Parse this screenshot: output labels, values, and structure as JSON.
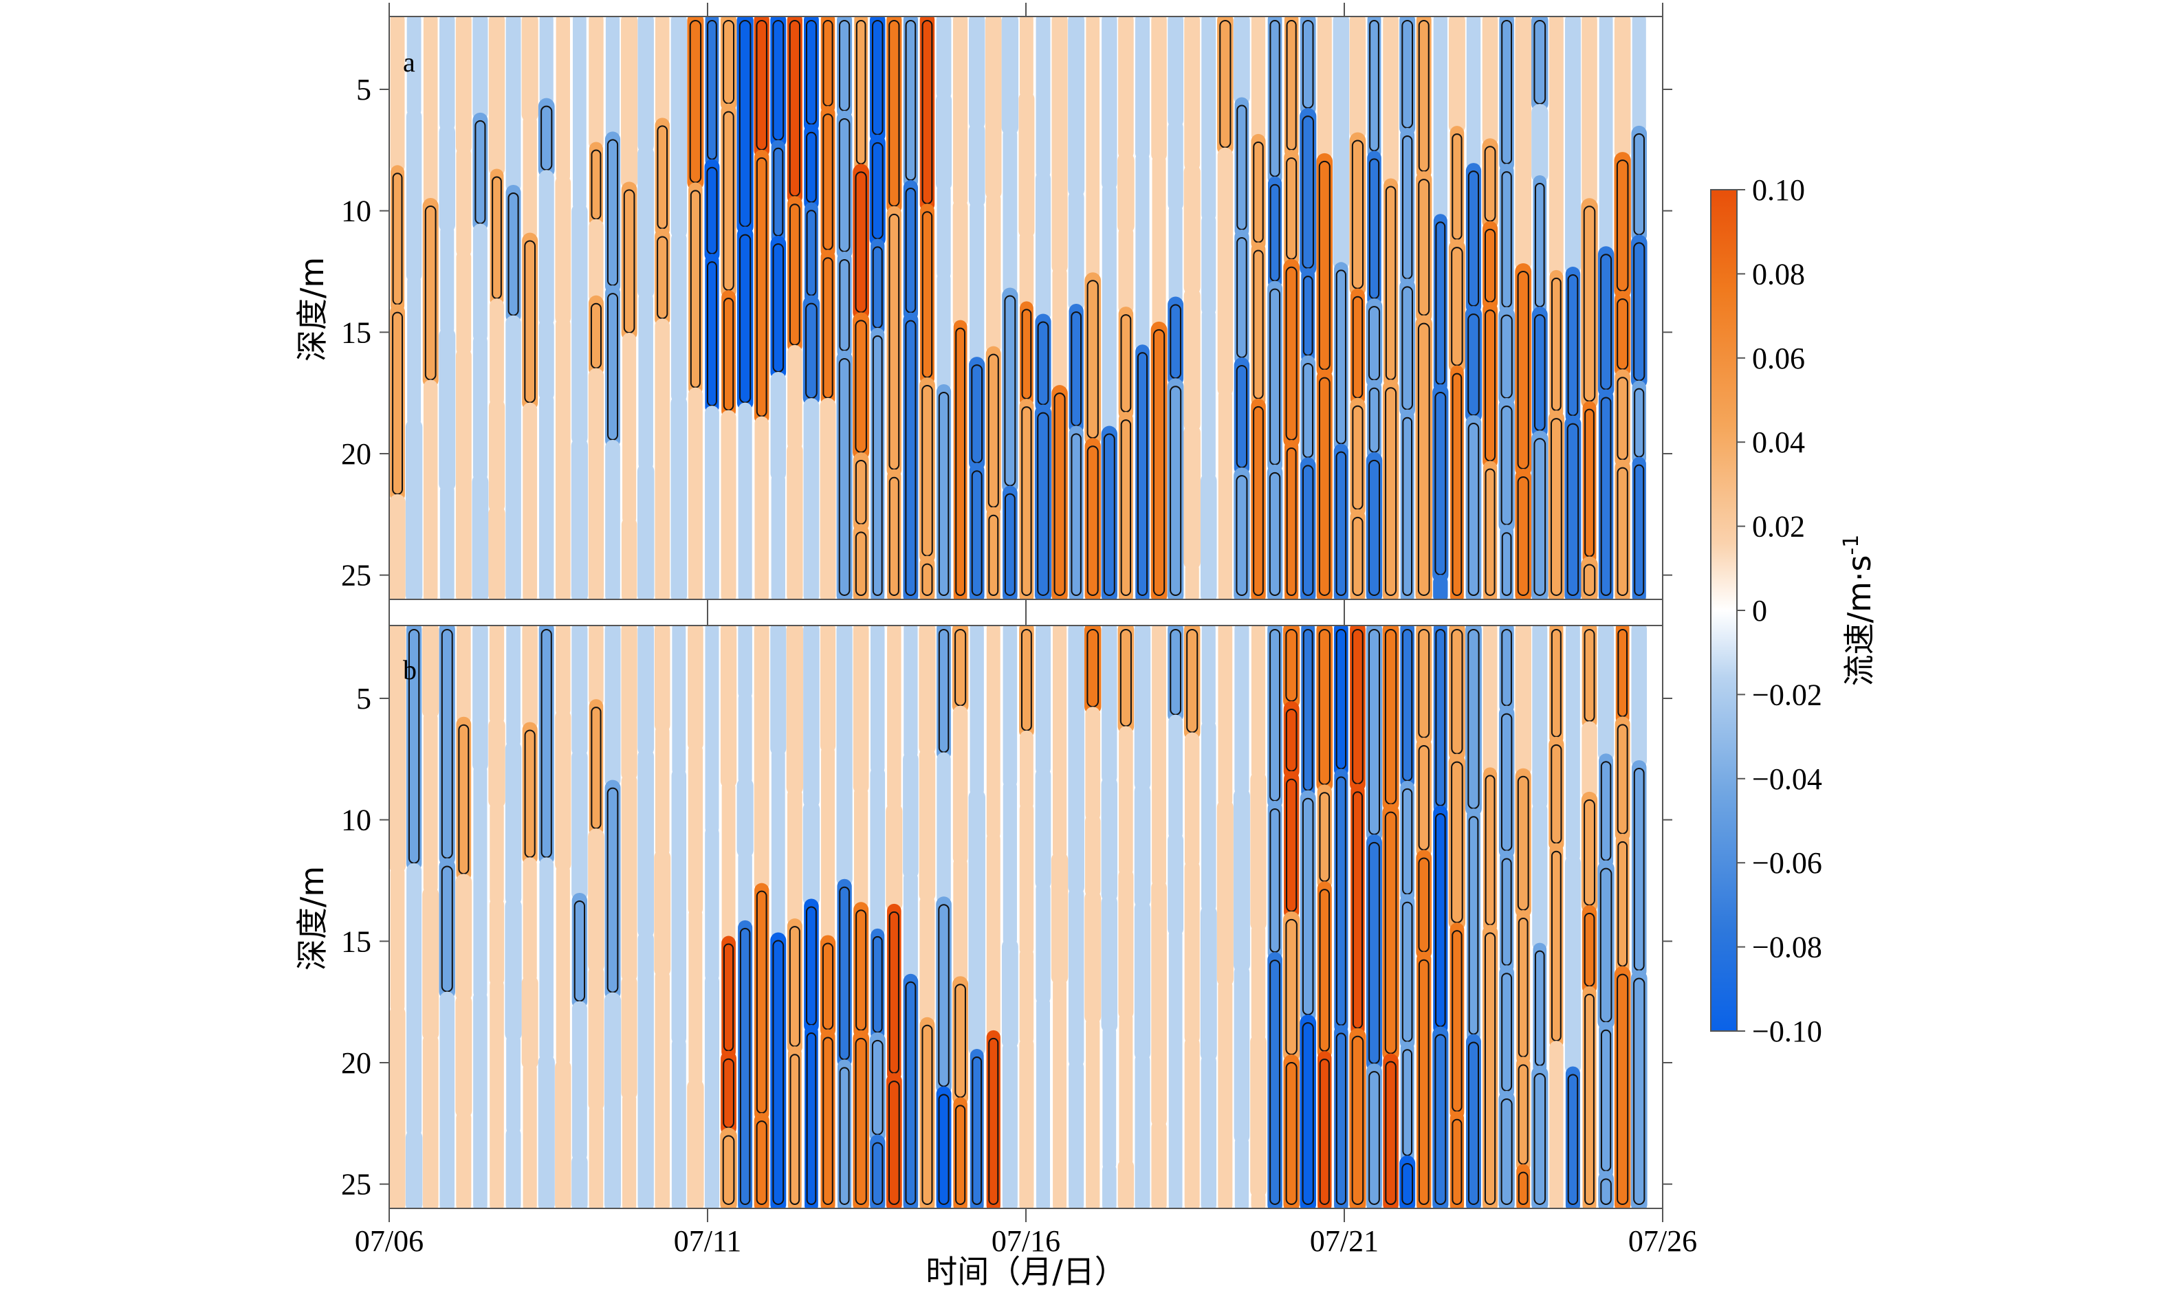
{
  "chart_data": [
    {
      "type": "heatmap",
      "panel_label": "a",
      "ylabel": "深度/m",
      "xlabel": "",
      "xlim": [
        "07/06",
        "07/26"
      ],
      "ylim": [
        26,
        2
      ],
      "y_ticks": [
        5,
        10,
        15,
        20,
        25
      ],
      "y_tick_labels": [
        "5",
        "10",
        "15",
        "20",
        "25"
      ],
      "x_ticks": [
        "07/06",
        "07/11",
        "07/16",
        "07/21",
        "07/26"
      ],
      "contours": "black outline at ±0.02",
      "pattern": "alternating vertical bands (~0.5 day period); strongest orange/blue above 17 m during 07/11–07/14, strong bands below 15 m after 07/13 and throughout 07/19–07/26"
    },
    {
      "type": "heatmap",
      "panel_label": "b",
      "ylabel": "深度/m",
      "xlabel": "时间（月/日）",
      "xlim": [
        "07/06",
        "07/26"
      ],
      "ylim": [
        26,
        2
      ],
      "y_ticks": [
        5,
        10,
        15,
        20,
        25
      ],
      "y_tick_labels": [
        "5",
        "10",
        "15",
        "20",
        "25"
      ],
      "x_ticks": [
        "07/06",
        "07/11",
        "07/16",
        "07/21",
        "07/26"
      ],
      "x_tick_labels": [
        "07/06",
        "07/11",
        "07/16",
        "07/21",
        "07/26"
      ],
      "contours": "black outline at ±0.02",
      "pattern": "alternating vertical bands; strongest bands below 16 m during 07/11–07/15, full-depth strong bands during 07/19–07/23, near-surface bands after 07/17"
    }
  ],
  "colorbar": {
    "label": "流速/m·s",
    "label_superscript": "-1",
    "min": -0.1,
    "max": 0.1,
    "ticks": [
      "0.10",
      "0.08",
      "0.06",
      "0.04",
      "0.02",
      "0",
      "−0.02",
      "−0.04",
      "−0.06",
      "−0.08",
      "−0.10"
    ],
    "colors": {
      "max": "#e8500a",
      "high": "#f07a1e",
      "mid_high": "#f5a65a",
      "low_pos": "#fad2ad",
      "zero": "#ffffff",
      "low_neg": "#b8d3f0",
      "mid_low": "#6fa5e2",
      "low": "#2e78dc",
      "min": "#0a62e8"
    }
  }
}
